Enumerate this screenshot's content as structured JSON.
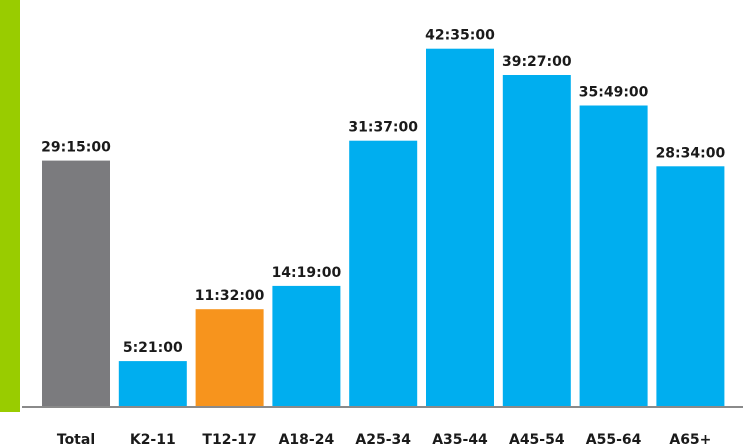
{
  "chart_data": {
    "type": "bar",
    "title": "",
    "xlabel": "",
    "ylabel": "",
    "categories": [
      "Total",
      "K2-11",
      "T12-17",
      "A18-24",
      "A25-34",
      "A35-44",
      "A45-54",
      "A55-64",
      "A65+"
    ],
    "values_hhmmss": [
      "29:15:00",
      "5:21:00",
      "11:32:00",
      "14:19:00",
      "31:37:00",
      "42:35:00",
      "39:27:00",
      "35:49:00",
      "28:34:00"
    ],
    "values_hours": [
      29.25,
      5.35,
      11.533,
      14.317,
      31.617,
      42.583,
      39.45,
      35.817,
      28.567
    ],
    "ylim": [
      0,
      45
    ],
    "grid": false,
    "legend": "none",
    "colors": [
      "#7b7b7e",
      "#00aeef",
      "#f7941d",
      "#00aeef",
      "#00aeef",
      "#00aeef",
      "#00aeef",
      "#00aeef",
      "#00aeef"
    ],
    "axis_color": "#8a8a8a",
    "accent_color": "#99cc00"
  }
}
